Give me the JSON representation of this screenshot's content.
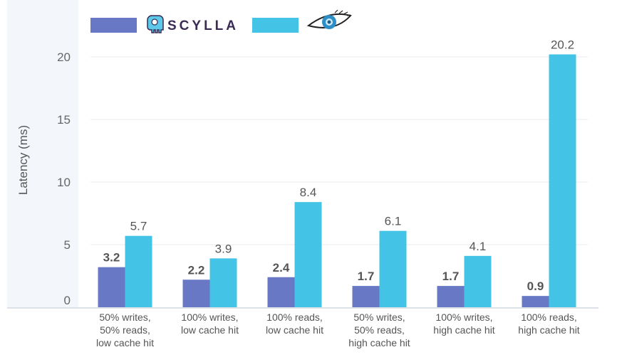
{
  "chart_data": {
    "type": "bar",
    "title": "",
    "xlabel": "",
    "ylabel": "Latency (ms)",
    "ylim": [
      0,
      21.5
    ],
    "yticks": [
      0,
      5,
      10,
      15,
      20
    ],
    "grid": true,
    "legend_position": "top-left",
    "categories": [
      [
        "50% writes,",
        "50% reads,",
        "low cache hit"
      ],
      [
        "100% writes,",
        "low cache hit"
      ],
      [
        "100% reads,",
        "low cache hit"
      ],
      [
        "50% writes,",
        "50% reads,",
        "high cache hit"
      ],
      [
        "100% writes,",
        "high cache hit"
      ],
      [
        "100% reads,",
        "high cache hit"
      ]
    ],
    "series": [
      {
        "name": "SCYLLA",
        "legend_icon": "scylla-logo",
        "color": "#6878c4",
        "values": [
          3.2,
          2.2,
          2.4,
          1.7,
          1.7,
          0.9
        ],
        "labels": [
          "3.2",
          "2.2",
          "2.4",
          "1.7",
          "1.7",
          "0.9"
        ]
      },
      {
        "name": "",
        "legend_icon": "cassandra-eye-logo",
        "color": "#43c4e6",
        "values": [
          5.7,
          3.9,
          8.4,
          6.1,
          4.1,
          20.2
        ],
        "labels": [
          "5.7",
          "3.9",
          "8.4",
          "6.1",
          "4.1",
          "20.2"
        ]
      }
    ]
  }
}
